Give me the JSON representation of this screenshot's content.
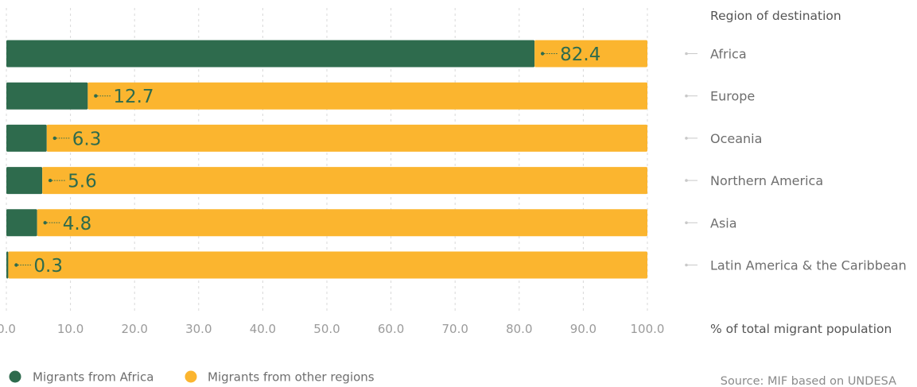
{
  "colors": {
    "africa": "#2e6b4d",
    "other": "#fbb52f",
    "value_text": "#2e6b4d",
    "grid": "#d9d9d9",
    "connector": "#c9c9c9"
  },
  "chart_data": {
    "type": "bar",
    "orientation": "horizontal",
    "stacked": true,
    "categories": [
      "Africa",
      "Europe",
      "Oceania",
      "Northern America",
      "Asia",
      "Latin America & the Caribbean"
    ],
    "series": [
      {
        "name": "Migrants from Africa",
        "values": [
          82.4,
          12.7,
          6.3,
          5.6,
          4.8,
          0.3
        ]
      },
      {
        "name": "Migrants from other regions",
        "values": [
          17.6,
          87.3,
          93.7,
          94.4,
          95.2,
          99.7
        ]
      }
    ],
    "value_labels": [
      "82.4",
      "12.7",
      "6.3",
      "5.6",
      "4.8",
      "0.3"
    ],
    "xlim": [
      0,
      100
    ],
    "x_ticks": [
      "0.0",
      "10.0",
      "20.0",
      "30.0",
      "40.0",
      "50.0",
      "60.0",
      "70.0",
      "80.0",
      "90.0",
      "100.0"
    ],
    "category_axis_title": "Region of destination",
    "value_axis_title": "% of total migrant population",
    "grid": true,
    "legend_position": "bottom-left",
    "source": "Source: MIF based on UNDESA"
  }
}
